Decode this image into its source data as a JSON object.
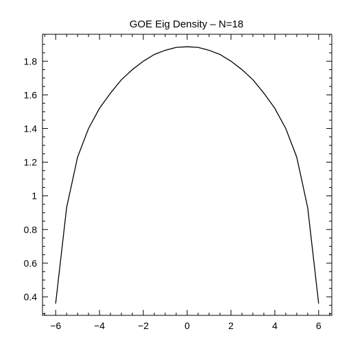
{
  "chart_data": {
    "type": "line",
    "title": "GOE Eig Density – N=18",
    "xlabel": "",
    "ylabel": "",
    "xlim": [
      -6.6,
      6.6
    ],
    "ylim": [
      0.29,
      1.96
    ],
    "x_ticks": [
      -6,
      -4,
      -2,
      0,
      2,
      4,
      6
    ],
    "x_tick_labels": [
      "−6",
      "−4",
      "−2",
      "0",
      "2",
      "4",
      "6"
    ],
    "y_ticks": [
      0.4,
      0.6,
      0.8,
      1.0,
      1.2,
      1.4,
      1.6,
      1.8
    ],
    "y_tick_labels": [
      "0.4",
      "0.6",
      "0.8",
      "1",
      "1.2",
      "1.4",
      "1.6",
      "1.8"
    ],
    "grid": false,
    "series": [
      {
        "x": [
          -6.0,
          -5.5,
          -5.0,
          -4.5,
          -4.0,
          -3.5,
          -3.0,
          -2.5,
          -2.0,
          -1.5,
          -1.0,
          -0.5,
          0.0,
          0.5,
          1.0,
          1.5,
          2.0,
          2.5,
          3.0,
          3.5,
          4.0,
          4.5,
          5.0,
          5.5,
          6.0
        ],
        "y": [
          0.36,
          0.93,
          1.23,
          1.4,
          1.52,
          1.61,
          1.69,
          1.75,
          1.8,
          1.84,
          1.865,
          1.882,
          1.886,
          1.882,
          1.865,
          1.84,
          1.8,
          1.75,
          1.69,
          1.61,
          1.52,
          1.4,
          1.23,
          0.93,
          0.36
        ],
        "color": "#000000"
      }
    ]
  }
}
